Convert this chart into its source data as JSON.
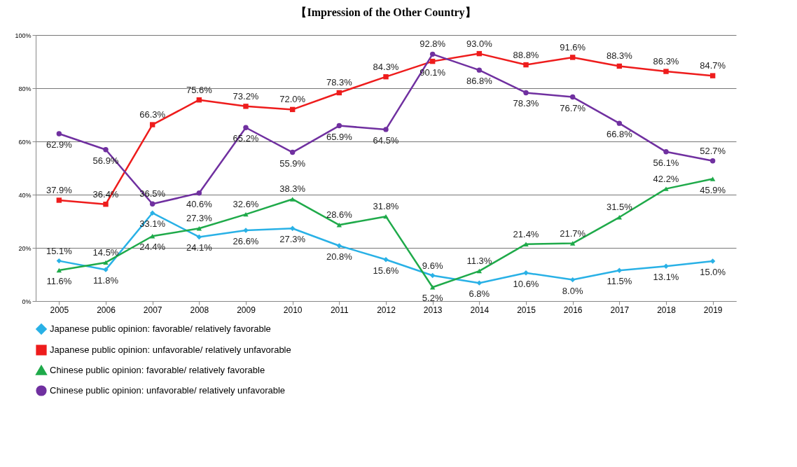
{
  "chart_data": {
    "type": "line",
    "title": "【Impression of the Other Country】",
    "categories": [
      "2005",
      "2006",
      "2007",
      "2008",
      "2009",
      "2010",
      "2011",
      "2012",
      "2013",
      "2014",
      "2015",
      "2016",
      "2017",
      "2018",
      "2019"
    ],
    "series": [
      {
        "name": "Japanese public opinion: favorable/ relatively favorable",
        "color": "#29b1e6",
        "marker": "diamond",
        "values": [
          15.1,
          11.8,
          33.1,
          24.1,
          26.6,
          27.3,
          20.8,
          15.6,
          9.6,
          6.8,
          10.6,
          8.0,
          11.5,
          13.1,
          15.0
        ],
        "value_labels": [
          "15.1%",
          "11.8%",
          "33.1%",
          "24.1%",
          "26.6%",
          "27.3%",
          "20.8%",
          "15.6%",
          "9.6%",
          "6.8%",
          "10.6%",
          "8.0%",
          "11.5%",
          "13.1%",
          "15.0%"
        ]
      },
      {
        "name": "Japanese public opinion: unfavorable/ relatively unfavorable",
        "color": "#ee1c1c",
        "marker": "square",
        "values": [
          37.9,
          36.4,
          66.3,
          75.6,
          73.2,
          72.0,
          78.3,
          84.3,
          90.1,
          93.0,
          88.8,
          91.6,
          88.3,
          86.3,
          84.7
        ],
        "value_labels": [
          "37.9%",
          "36.4%",
          "66.3%",
          "75.6%",
          "73.2%",
          "72.0%",
          "78.3%",
          "84.3%",
          "90.1%",
          "93.0%",
          "88.8%",
          "91.6%",
          "88.3%",
          "86.3%",
          "84.7%"
        ]
      },
      {
        "name": "Chinese public opinion: favorable/ relatively favorable",
        "color": "#1faa4a",
        "marker": "triangle",
        "values": [
          11.6,
          14.5,
          24.4,
          27.3,
          32.6,
          38.3,
          28.6,
          31.8,
          5.2,
          11.3,
          21.4,
          21.7,
          31.5,
          42.2,
          45.9
        ],
        "value_labels": [
          "11.6%",
          "14.5%",
          "24.4%",
          "27.3%",
          "32.6%",
          "38.3%",
          "28.6%",
          "31.8%",
          "5.2%",
          "11.3%",
          "21.4%",
          "21.7%",
          "31.5%",
          "42.2%",
          "45.9%"
        ]
      },
      {
        "name": "Chinese public opinion: unfavorable/ relatively unfavorable",
        "color": "#7030a0",
        "marker": "circle",
        "values": [
          62.9,
          56.9,
          36.5,
          40.6,
          65.2,
          55.9,
          65.9,
          64.5,
          92.8,
          86.8,
          78.3,
          76.7,
          66.8,
          56.1,
          52.7
        ],
        "value_labels": [
          "62.9%",
          "56.9%",
          "36.5%",
          "40.6%",
          "65.2%",
          "55.9%",
          "65.9%",
          "64.5%",
          "92.8%",
          "86.8%",
          "78.3%",
          "76.7%",
          "66.8%",
          "56.1%",
          "52.7%"
        ]
      }
    ],
    "ylim": [
      0,
      100
    ],
    "yticks": [
      {
        "value": 0,
        "label": "0%"
      },
      {
        "value": 20,
        "label": "20%"
      },
      {
        "value": 40,
        "label": "40%"
      },
      {
        "value": 60,
        "label": "60%"
      },
      {
        "value": 80,
        "label": "80%"
      },
      {
        "value": 100,
        "label": "100%"
      }
    ],
    "grid": "y",
    "legend": "bottom",
    "line_style": "solid"
  }
}
